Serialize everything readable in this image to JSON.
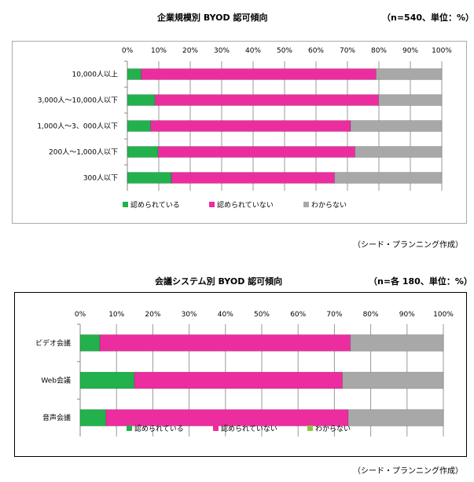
{
  "colors": {
    "approved": "#22b14c",
    "not_approved": "#ec2d9f",
    "unknown": "#a8a8a8",
    "unknown_legend2": "#8cc63f"
  },
  "chart_data": [
    {
      "type": "bar",
      "orientation": "horizontal",
      "stacked": "percent",
      "title": "企業規模別 BYOD 認可傾向",
      "note": "（n=540、単位：%）",
      "categories": [
        "10,000人以上",
        "3,000人～10,000人以下",
        "1,000人～3、000人以下",
        "200人～1,000人以下",
        "300人以下"
      ],
      "series": [
        {
          "name": "認められている",
          "values": [
            4.4,
            8.8,
            7.4,
            9.8,
            14.0
          ]
        },
        {
          "name": "認められていない",
          "values": [
            74.7,
            71.1,
            63.6,
            62.6,
            51.9
          ]
        },
        {
          "name": "わからない",
          "values": [
            20.9,
            20.1,
            29.0,
            27.6,
            34.1
          ]
        }
      ],
      "ticks": [
        "0%",
        "10%",
        "20%",
        "30%",
        "40%",
        "50%",
        "60%",
        "70%",
        "80%",
        "90%",
        "100%"
      ],
      "xlim": [
        0,
        100
      ],
      "grid": true,
      "legend": "bottom",
      "credit": "（シード・プランニング作成）"
    },
    {
      "type": "bar",
      "orientation": "horizontal",
      "stacked": "percent",
      "title": "会議システム別 BYOD 認可傾向",
      "note": "（n=各 180、単位：%）",
      "categories": [
        "ビデオ会議",
        "Web会議",
        "音声会議"
      ],
      "series": [
        {
          "name": "認められている",
          "values": [
            5.4,
            14.9,
            7.1
          ]
        },
        {
          "name": "認められていない",
          "values": [
            69.0,
            57.3,
            66.7
          ]
        },
        {
          "name": "わからない",
          "values": [
            25.6,
            27.8,
            26.2
          ]
        }
      ],
      "ticks": [
        "0%",
        "10%",
        "20%",
        "30%",
        "40%",
        "50%",
        "60%",
        "70%",
        "80%",
        "90%",
        "100%"
      ],
      "xlim": [
        0,
        100
      ],
      "grid": true,
      "legend": "bottom",
      "credit": "（シード・プランニング作成）"
    }
  ]
}
